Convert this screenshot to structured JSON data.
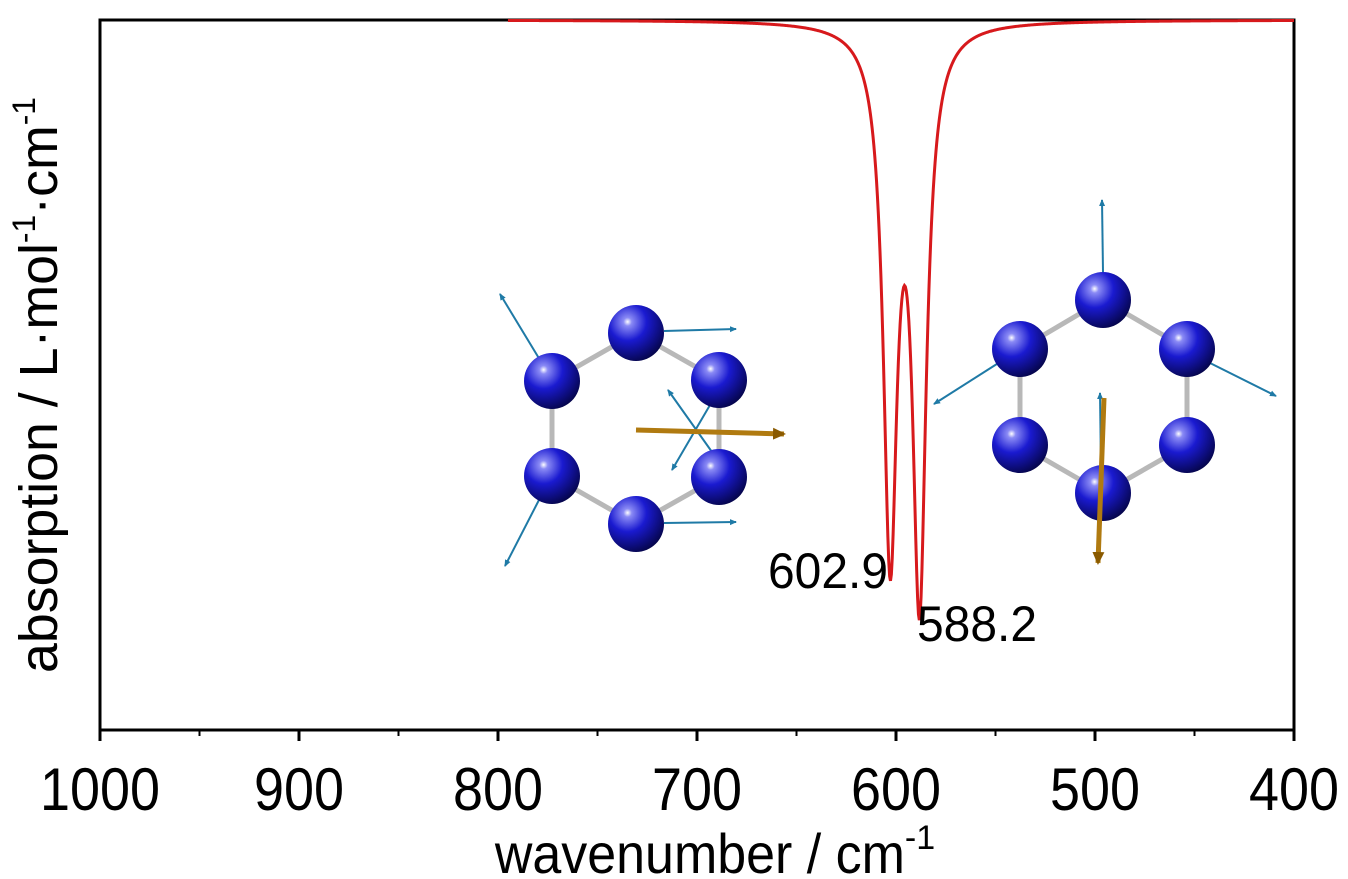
{
  "chart_data": {
    "type": "line",
    "xlabel": "wavenumber / cm",
    "xlabel_sup": "-1",
    "ylabel_parts": [
      "absorption / L·mol",
      "-1",
      "·cm",
      "-1"
    ],
    "xlim": [
      1000,
      400
    ],
    "x_reversed": true,
    "x_ticks": [
      1000,
      900,
      800,
      700,
      600,
      500,
      400
    ],
    "x_tick_labels": [
      "1000",
      "900",
      "800",
      "700",
      "600",
      "500",
      "400"
    ],
    "y_axis_scale": "relative",
    "y_ticks_shown": false,
    "grid": false,
    "line_color": "#d7191c",
    "series": [
      {
        "x_start": 795,
        "x_end": 400,
        "baseline": 0,
        "peaks": [
          {
            "center": 602.9,
            "depth": 0.73,
            "hwhm": 4.2
          },
          {
            "center": 588.2,
            "depth": 0.79,
            "hwhm": 4.2
          }
        ]
      }
    ],
    "annotations": [
      {
        "text": "602.9",
        "x": 602.9
      },
      {
        "text": "588.2",
        "x": 588.2
      }
    ],
    "insets": [
      {
        "name": "vibrational-mode-602.9",
        "depicts": "hexagonal ring of six blue atoms with displacement vectors; orange arrow pointing right"
      },
      {
        "name": "vibrational-mode-588.2",
        "depicts": "hexagonal ring of six blue atoms with displacement vectors; orange arrow pointing down"
      }
    ],
    "atom_color": "#1a1ad0",
    "vector_color": "#1f7aa6",
    "dipole_color": "#b07a10"
  }
}
